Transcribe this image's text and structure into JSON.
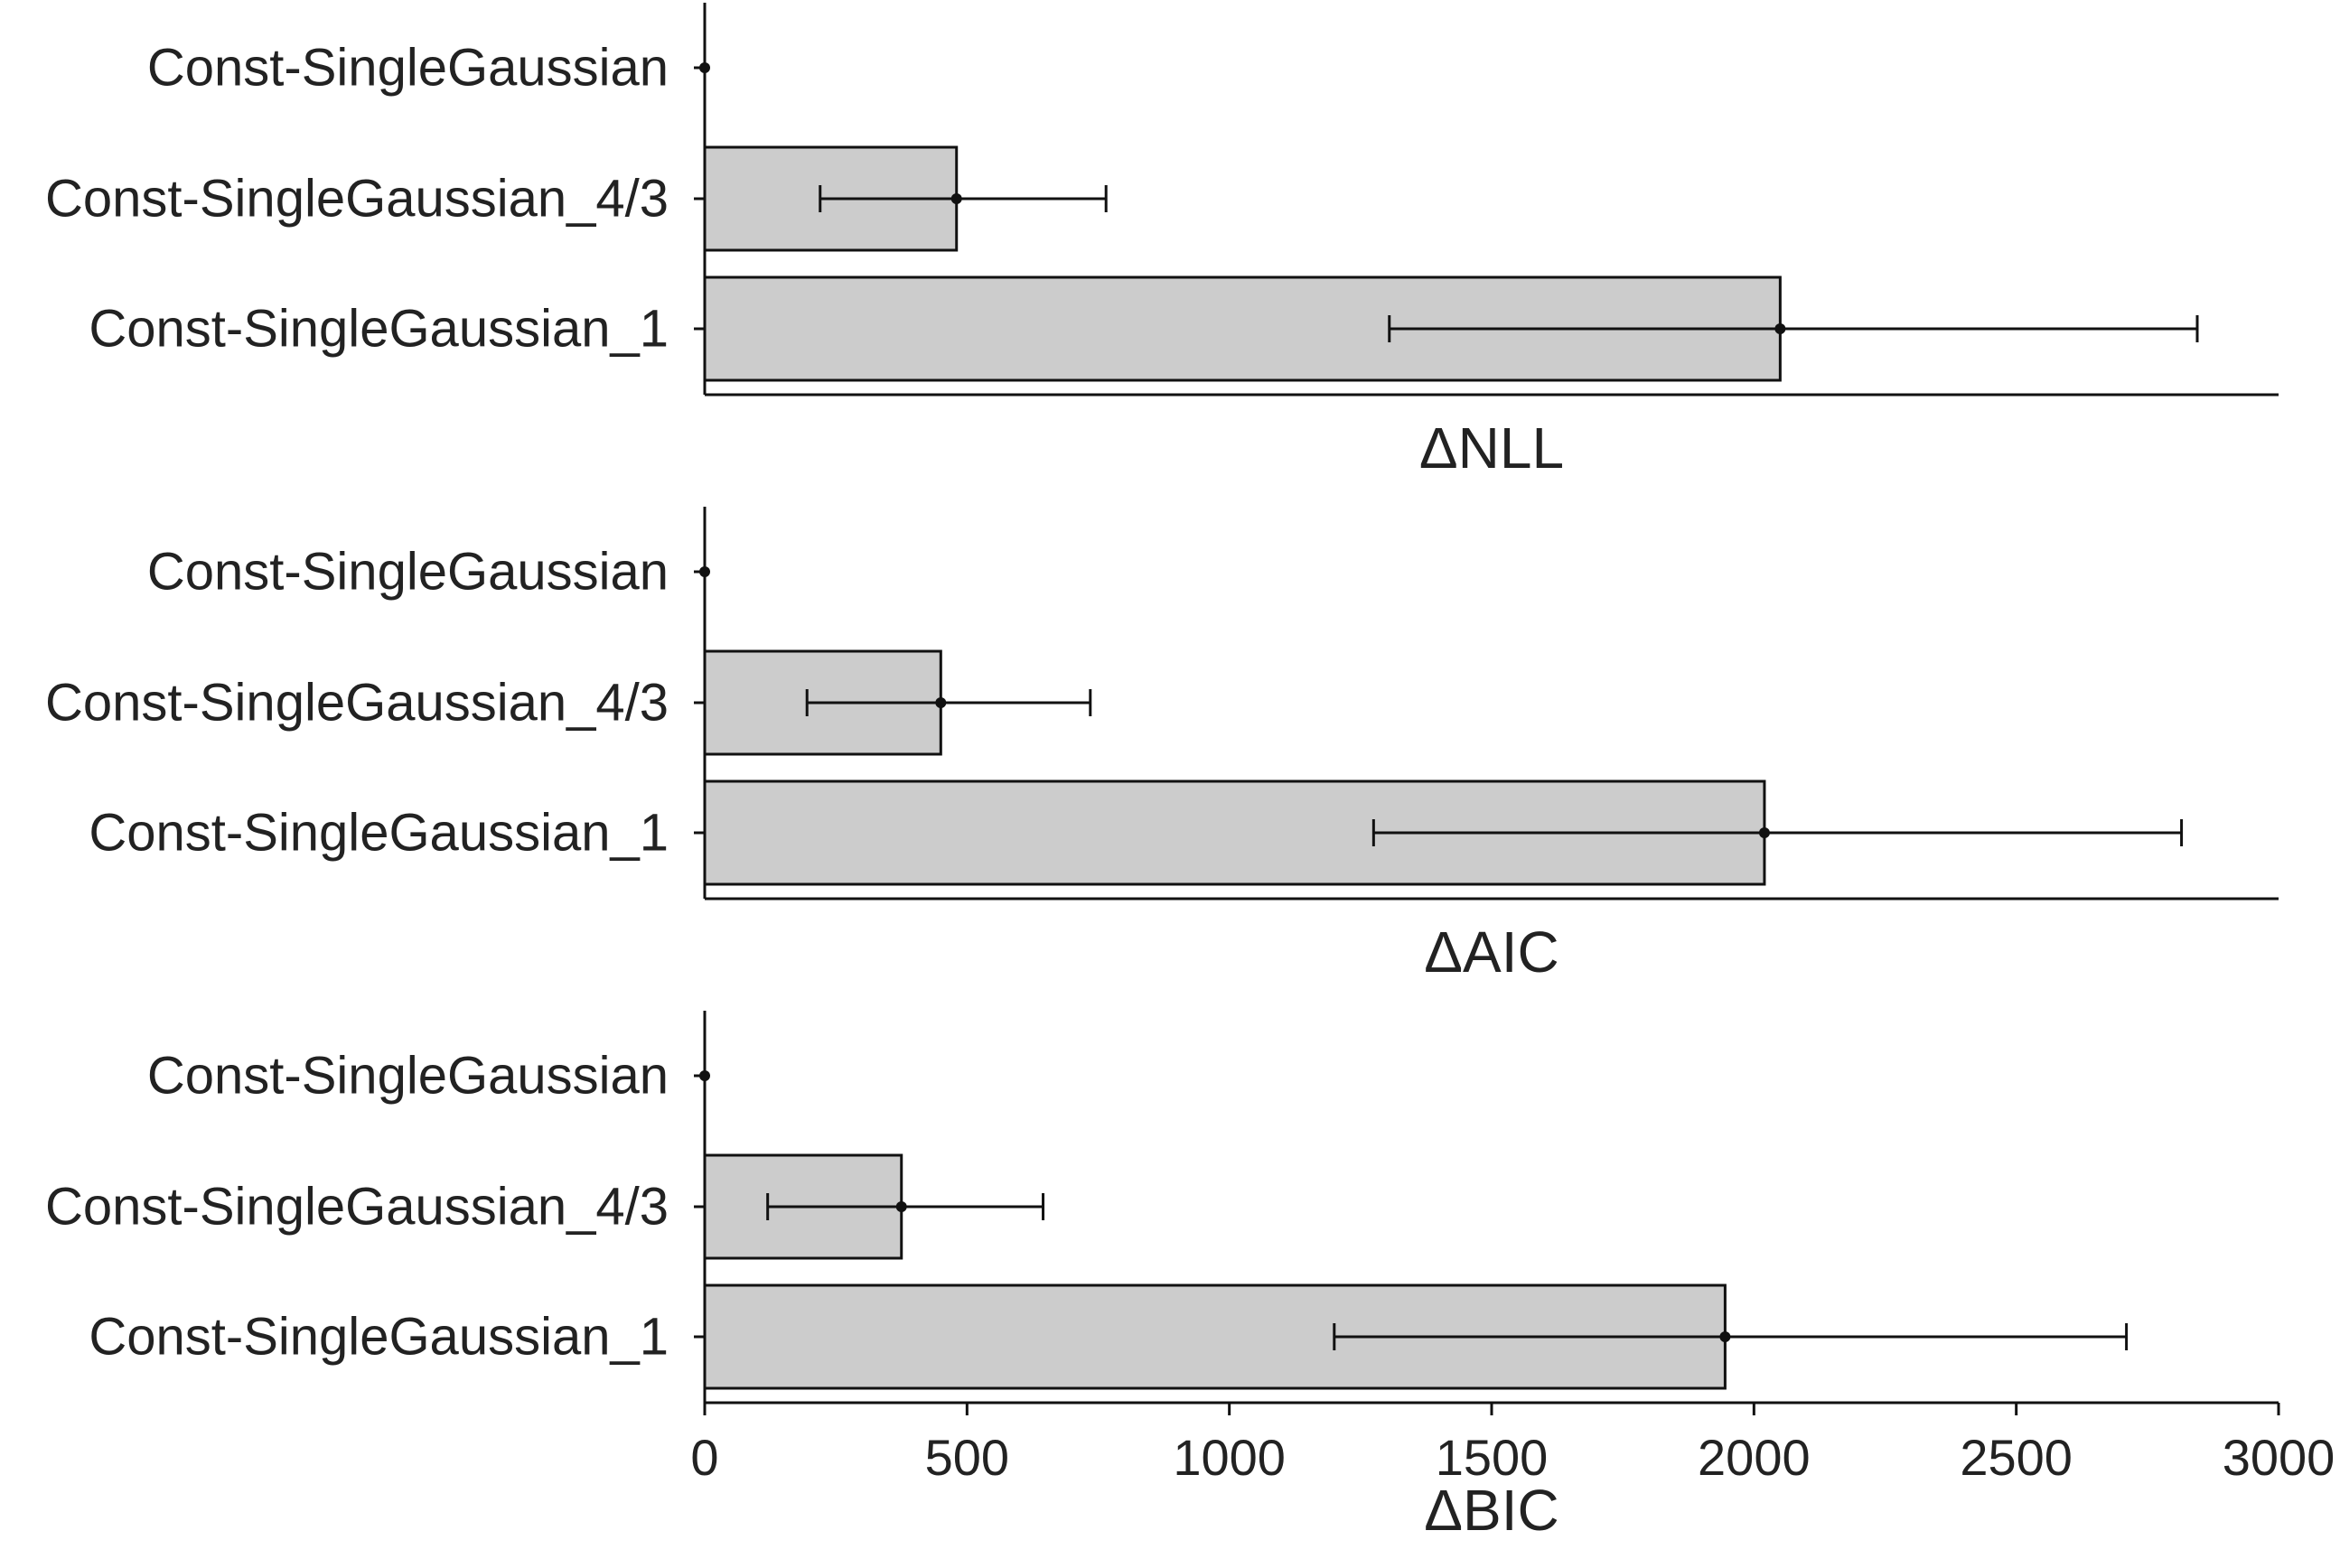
{
  "chart_data": [
    {
      "type": "bar",
      "orientation": "horizontal",
      "xlabel": "ΔNLL",
      "categories": [
        "Const-SingleGaussian",
        "Const-SingleGaussian_4/3",
        "Const-SingleGaussian_1"
      ],
      "values": [
        0,
        480,
        2050
      ],
      "error_low": [
        0,
        220,
        1305
      ],
      "error_high": [
        0,
        765,
        2845
      ],
      "xlim": [
        0,
        3000
      ],
      "show_xticks": false,
      "bar_color": "#cccccc"
    },
    {
      "type": "bar",
      "orientation": "horizontal",
      "xlabel": "ΔAIC",
      "categories": [
        "Const-SingleGaussian",
        "Const-SingleGaussian_4/3",
        "Const-SingleGaussian_1"
      ],
      "values": [
        0,
        450,
        2020
      ],
      "error_low": [
        0,
        195,
        1275
      ],
      "error_high": [
        0,
        735,
        2815
      ],
      "xlim": [
        0,
        3000
      ],
      "show_xticks": false,
      "bar_color": "#cccccc"
    },
    {
      "type": "bar",
      "orientation": "horizontal",
      "xlabel": "ΔBIC",
      "categories": [
        "Const-SingleGaussian",
        "Const-SingleGaussian_4/3",
        "Const-SingleGaussian_1"
      ],
      "values": [
        0,
        375,
        1945
      ],
      "error_low": [
        0,
        120,
        1200
      ],
      "error_high": [
        0,
        645,
        2710
      ],
      "xlim": [
        0,
        3000
      ],
      "show_xticks": true,
      "xticks": [
        0,
        500,
        1000,
        1500,
        2000,
        2500,
        3000
      ],
      "xtick_labels": [
        "0",
        "500",
        "1000",
        "1500",
        "2000",
        "2500",
        "3000"
      ],
      "bar_color": "#cccccc"
    }
  ]
}
